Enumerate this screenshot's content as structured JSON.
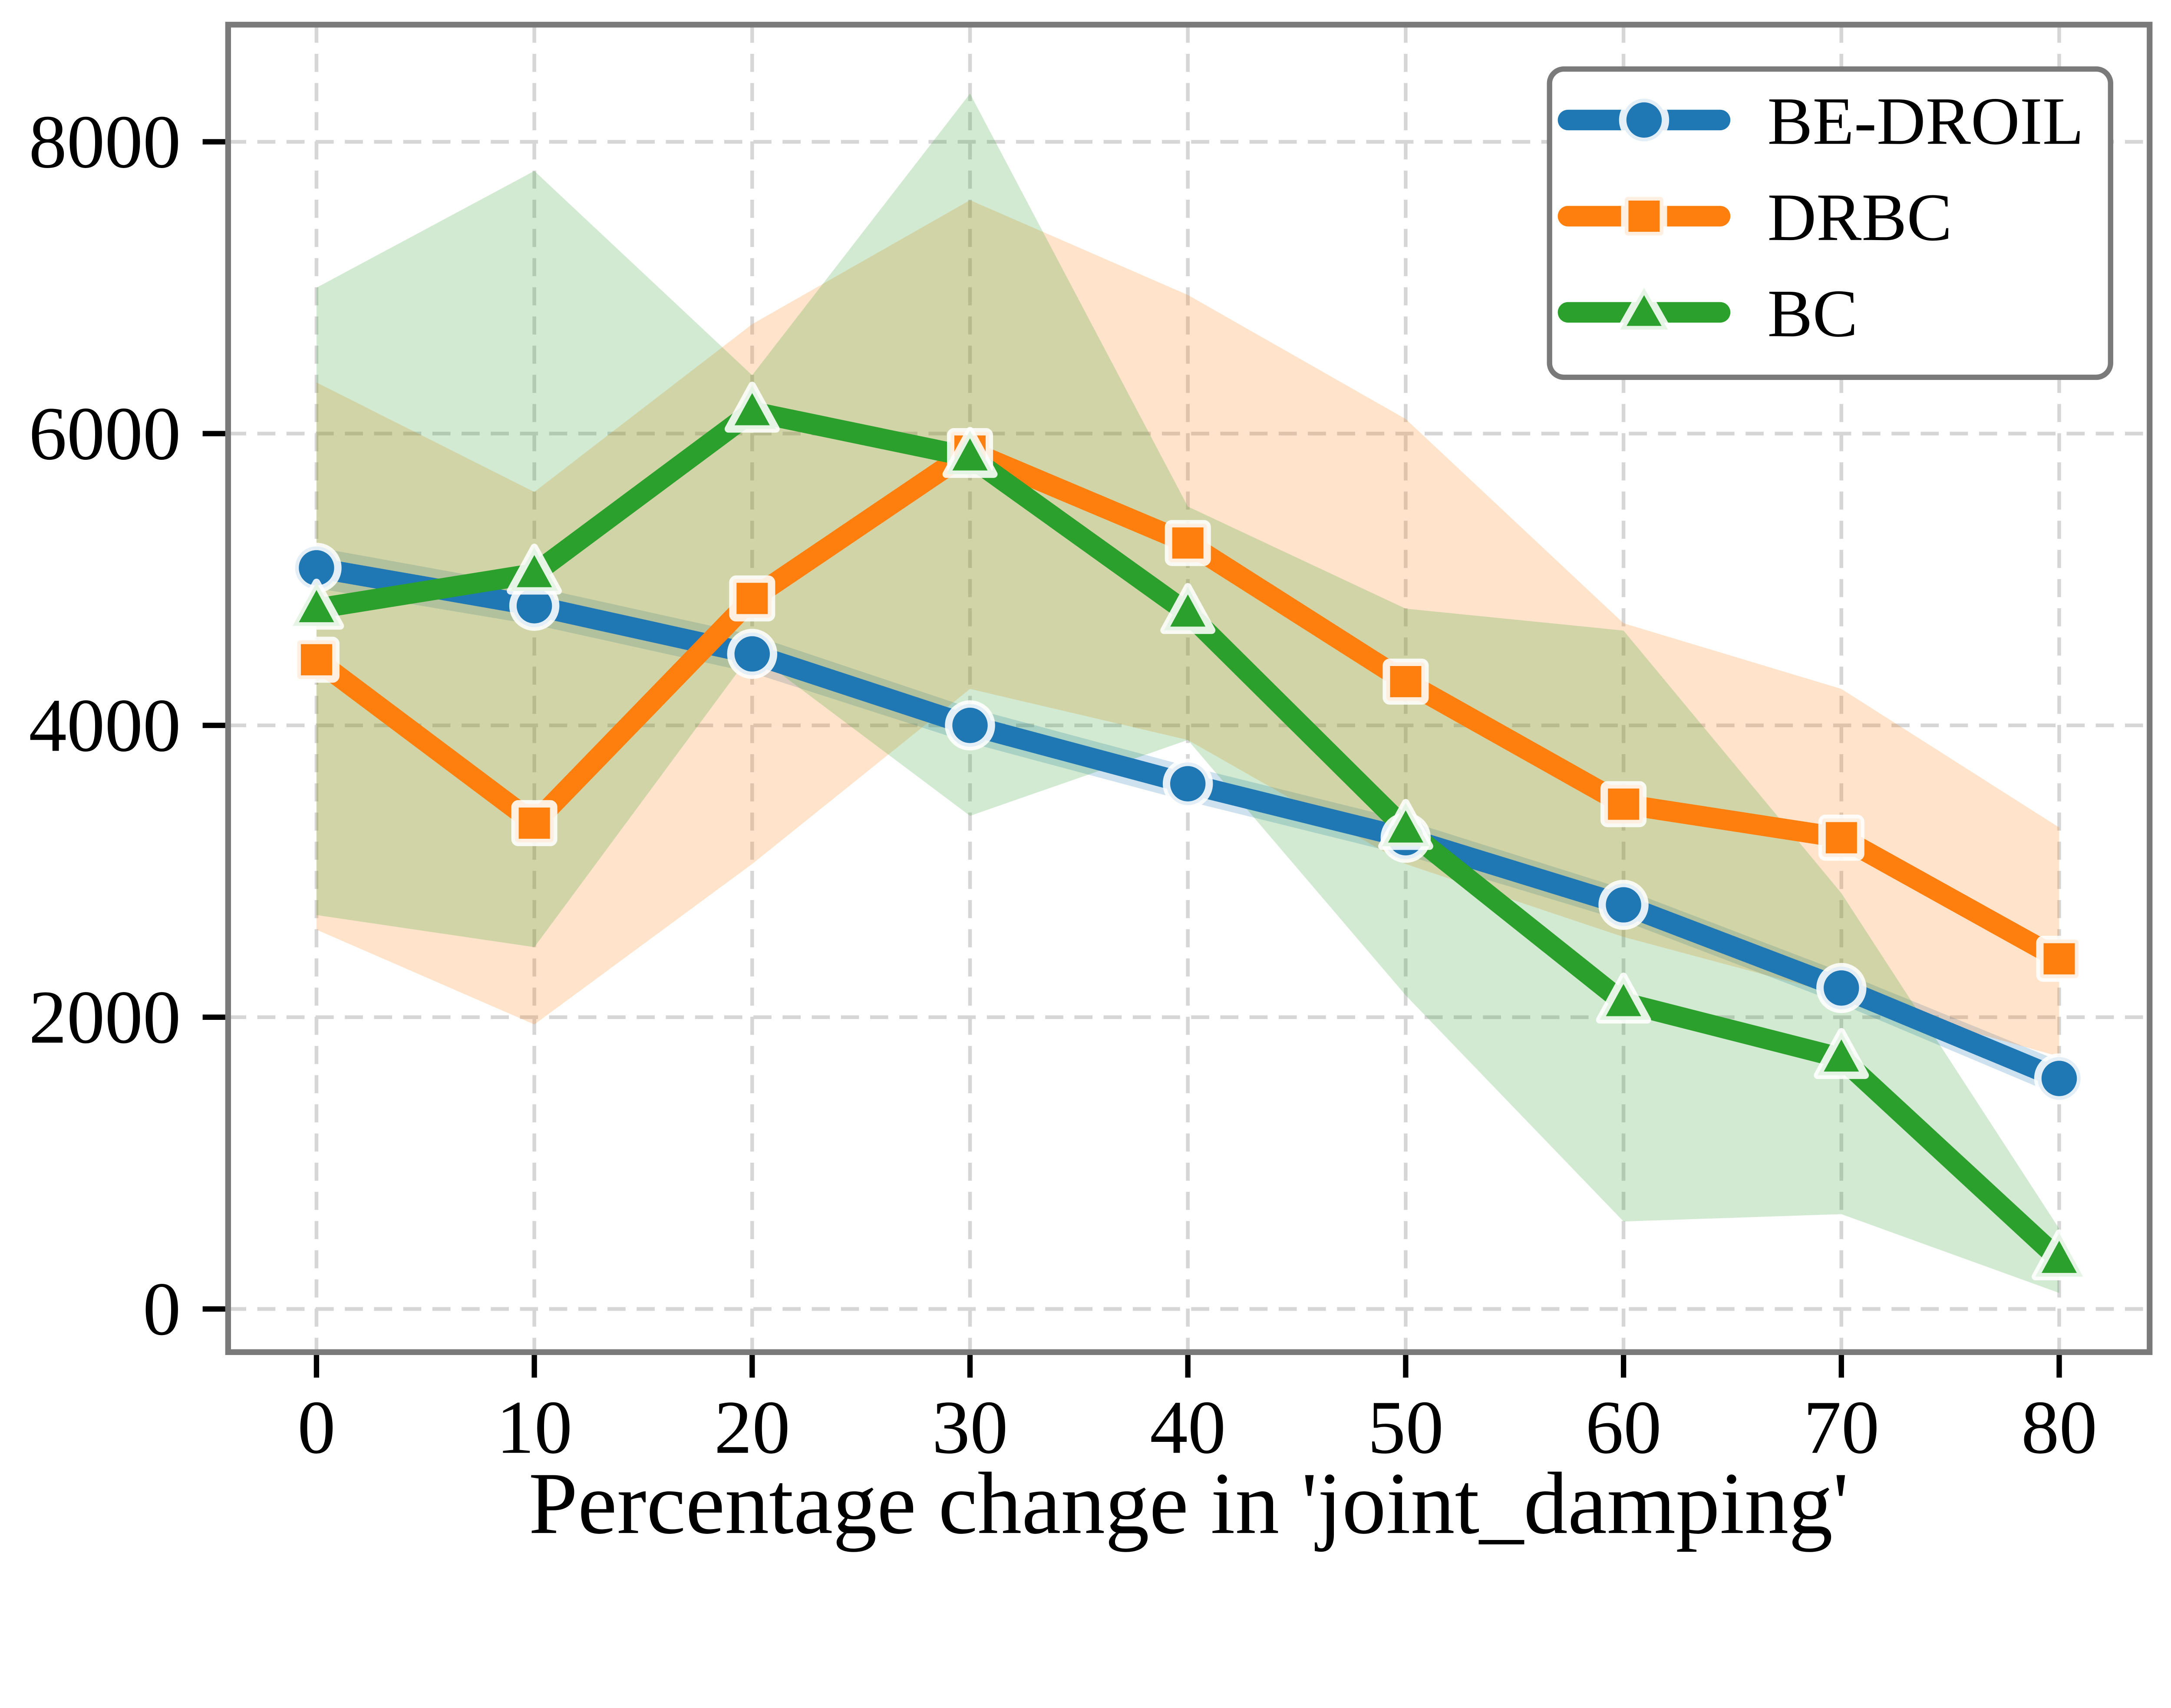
{
  "chart_data": {
    "type": "line",
    "title": "",
    "xlabel": "Percentage change in 'joint_damping'",
    "ylabel": "",
    "x": [
      0,
      10,
      20,
      30,
      40,
      50,
      60,
      70,
      80
    ],
    "xticks": [
      "0",
      "10",
      "20",
      "30",
      "40",
      "50",
      "60",
      "70",
      "80"
    ],
    "yticks": [
      "0",
      "2000",
      "4000",
      "6000",
      "8000"
    ],
    "ytick_values": [
      0,
      2000,
      4000,
      6000,
      8000
    ],
    "xlim": [
      -4,
      84
    ],
    "ylim": [
      -300,
      8800
    ],
    "grid": "dashed-both-axes",
    "legend_position": "upper-right",
    "band_opacity": 0.22,
    "series": [
      {
        "name": "BE-DROIL",
        "color": "#1f77b4",
        "marker": "circle",
        "values": [
          5080,
          4820,
          4490,
          4000,
          3600,
          3230,
          2770,
          2200,
          1580
        ],
        "band_lower": [
          4940,
          4690,
          4360,
          3880,
          3480,
          3110,
          2660,
          2090,
          1460
        ],
        "band_upper": [
          5220,
          4950,
          4620,
          4120,
          3720,
          3350,
          2880,
          2310,
          1700
        ]
      },
      {
        "name": "DRBC",
        "color": "#ff7f0e",
        "marker": "square",
        "values": [
          4450,
          3330,
          4870,
          5880,
          5250,
          4300,
          3460,
          3230,
          2400
        ],
        "band_lower": [
          2600,
          1950,
          3050,
          4250,
          3900,
          3050,
          2550,
          2150,
          1730
        ],
        "band_upper": [
          6350,
          5600,
          6750,
          7600,
          6950,
          6100,
          4700,
          4250,
          3300
        ]
      },
      {
        "name": "BC",
        "color": "#2ca02c",
        "marker": "triangle",
        "values": [
          4800,
          5040,
          6150,
          5840,
          4770,
          3290,
          2100,
          1720,
          340
        ],
        "band_lower": [
          2700,
          2480,
          4500,
          3380,
          3900,
          2150,
          600,
          650,
          110
        ],
        "band_upper": [
          7000,
          7800,
          6400,
          8330,
          5500,
          4800,
          4650,
          2850,
          550
        ]
      }
    ],
    "colors": {
      "grid": "#d6d6d6",
      "spine": "#7a7a7a",
      "tick": "#000000",
      "text": "#000000",
      "marker_edge": "#ffffff"
    }
  }
}
